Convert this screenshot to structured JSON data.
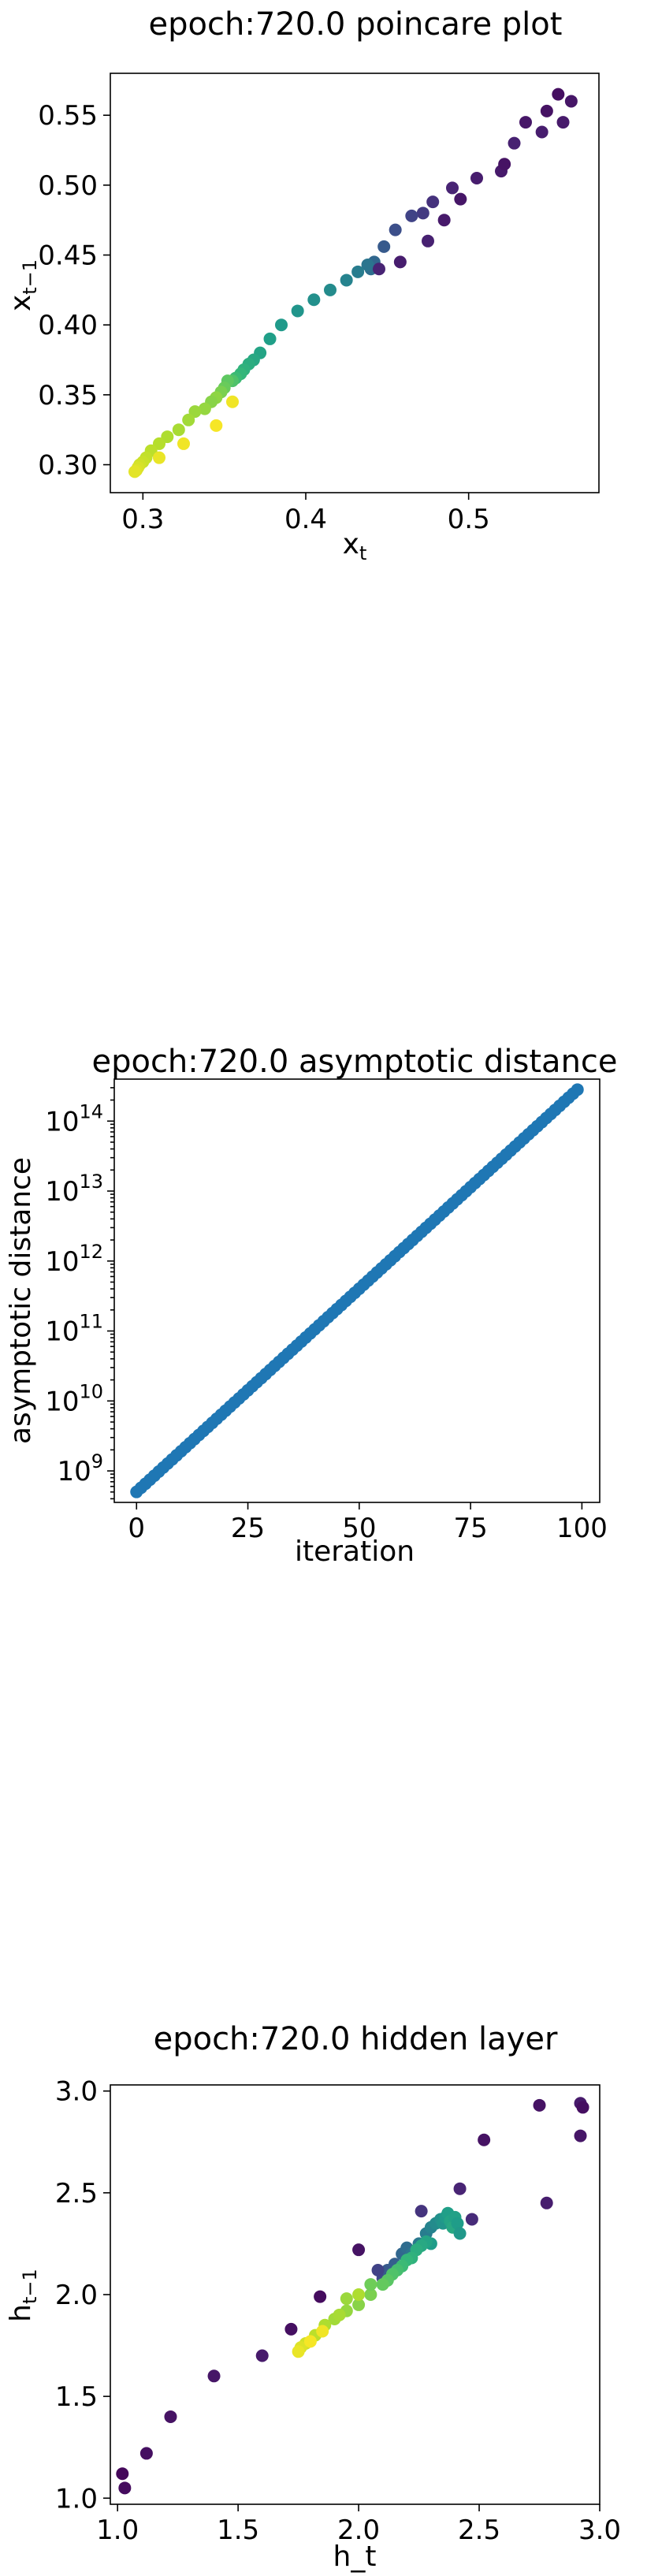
{
  "chart_data": [
    {
      "type": "scatter",
      "title": "epoch:720.0 poincare plot",
      "xlabel_base": "x",
      "xlabel_sub": "t",
      "ylabel_base": "x",
      "ylabel_sub": "t−1",
      "xlim": [
        0.28,
        0.58
      ],
      "ylim": [
        0.28,
        0.58
      ],
      "xticks": [
        0.3,
        0.4,
        0.5
      ],
      "xtick_labels": [
        "0.3",
        "0.4",
        "0.5"
      ],
      "yticks": [
        0.3,
        0.35,
        0.4,
        0.45,
        0.5,
        0.55
      ],
      "ytick_labels": [
        "0.30",
        "0.35",
        "0.40",
        "0.45",
        "0.50",
        "0.55"
      ],
      "colormap": "viridis",
      "points": [
        [
          0.555,
          0.565,
          0.04
        ],
        [
          0.563,
          0.56,
          0.06
        ],
        [
          0.548,
          0.553,
          0.05
        ],
        [
          0.558,
          0.545,
          0.07
        ],
        [
          0.545,
          0.538,
          0.08
        ],
        [
          0.535,
          0.545,
          0.06
        ],
        [
          0.528,
          0.53,
          0.09
        ],
        [
          0.52,
          0.51,
          0.07
        ],
        [
          0.505,
          0.505,
          0.08
        ],
        [
          0.49,
          0.498,
          0.1
        ],
        [
          0.478,
          0.488,
          0.14
        ],
        [
          0.472,
          0.48,
          0.17
        ],
        [
          0.465,
          0.478,
          0.2
        ],
        [
          0.455,
          0.468,
          0.24
        ],
        [
          0.448,
          0.456,
          0.28
        ],
        [
          0.442,
          0.445,
          0.33
        ],
        [
          0.44,
          0.44,
          0.36
        ],
        [
          0.438,
          0.443,
          0.39
        ],
        [
          0.432,
          0.438,
          0.42
        ],
        [
          0.425,
          0.432,
          0.45
        ],
        [
          0.415,
          0.425,
          0.48
        ],
        [
          0.405,
          0.418,
          0.5
        ],
        [
          0.395,
          0.41,
          0.52
        ],
        [
          0.385,
          0.4,
          0.54
        ],
        [
          0.378,
          0.39,
          0.56
        ],
        [
          0.372,
          0.38,
          0.58
        ],
        [
          0.368,
          0.375,
          0.6
        ],
        [
          0.365,
          0.372,
          0.62
        ],
        [
          0.362,
          0.368,
          0.64
        ],
        [
          0.36,
          0.365,
          0.66
        ],
        [
          0.357,
          0.362,
          0.68
        ],
        [
          0.355,
          0.36,
          0.72
        ],
        [
          0.352,
          0.36,
          0.75
        ],
        [
          0.35,
          0.355,
          0.77
        ],
        [
          0.348,
          0.352,
          0.8
        ],
        [
          0.345,
          0.348,
          0.83
        ],
        [
          0.342,
          0.345,
          0.82
        ],
        [
          0.338,
          0.34,
          0.84
        ],
        [
          0.332,
          0.338,
          0.85
        ],
        [
          0.328,
          0.332,
          0.86
        ],
        [
          0.322,
          0.325,
          0.87
        ],
        [
          0.315,
          0.32,
          0.88
        ],
        [
          0.31,
          0.315,
          0.89
        ],
        [
          0.305,
          0.31,
          0.9
        ],
        [
          0.302,
          0.305,
          0.91
        ],
        [
          0.3,
          0.302,
          0.92
        ],
        [
          0.298,
          0.3,
          0.93
        ],
        [
          0.297,
          0.298,
          0.94
        ],
        [
          0.296,
          0.296,
          0.95
        ],
        [
          0.295,
          0.295,
          0.96
        ],
        [
          0.31,
          0.305,
          0.97
        ],
        [
          0.325,
          0.315,
          0.98
        ],
        [
          0.345,
          0.328,
          0.99
        ],
        [
          0.355,
          0.345,
          0.98
        ],
        [
          0.445,
          0.44,
          0.1
        ],
        [
          0.458,
          0.445,
          0.08
        ],
        [
          0.475,
          0.46,
          0.09
        ],
        [
          0.485,
          0.475,
          0.07
        ],
        [
          0.495,
          0.49,
          0.06
        ],
        [
          0.522,
          0.515,
          0.05
        ]
      ]
    },
    {
      "type": "scatter",
      "title": "epoch:720.0 asymptotic distance",
      "xlabel": "iteration",
      "ylabel": "asymptotic distance",
      "yscale": "log",
      "xlim": [
        -5,
        104
      ],
      "ylim_log10": [
        8.55,
        14.6
      ],
      "xticks": [
        0,
        25,
        50,
        75,
        100
      ],
      "xtick_labels": [
        "0",
        "25",
        "50",
        "75",
        "100"
      ],
      "yticks_log10": [
        9,
        10,
        11,
        12,
        13,
        14
      ],
      "ytick_labels": [
        "10^9",
        "10^10",
        "10^11",
        "10^12",
        "10^13",
        "10^14"
      ],
      "color": "#1f77b4",
      "x_start": 0,
      "x_end": 99,
      "log10_y_start": 8.7,
      "log10_y_end": 14.45
    },
    {
      "type": "scatter",
      "title": "epoch:720.0 hidden layer",
      "xlabel": "h_t",
      "ylabel_base": "h",
      "ylabel_sub": "t−1",
      "xlim": [
        0.97,
        3.0
      ],
      "ylim": [
        0.97,
        3.03
      ],
      "xticks": [
        1.0,
        1.5,
        2.0,
        2.5,
        3.0
      ],
      "xtick_labels": [
        "1.0",
        "1.5",
        "2.0",
        "2.5",
        "3.0"
      ],
      "yticks": [
        1.0,
        1.5,
        2.0,
        2.5,
        3.0
      ],
      "ytick_labels": [
        "1.0",
        "1.5",
        "2.0",
        "2.5",
        "3.0"
      ],
      "colormap": "viridis",
      "points": [
        [
          2.75,
          2.93,
          0.05
        ],
        [
          2.92,
          2.94,
          0.07
        ],
        [
          2.93,
          2.92,
          0.04
        ],
        [
          2.92,
          2.78,
          0.06
        ],
        [
          2.52,
          2.76,
          0.05
        ],
        [
          2.78,
          2.45,
          0.08
        ],
        [
          1.02,
          1.12,
          0.02
        ],
        [
          1.03,
          1.05,
          0.03
        ],
        [
          1.12,
          1.22,
          0.04
        ],
        [
          1.22,
          1.4,
          0.05
        ],
        [
          1.4,
          1.6,
          0.06
        ],
        [
          1.6,
          1.7,
          0.07
        ],
        [
          1.72,
          1.83,
          0.04
        ],
        [
          1.84,
          1.99,
          0.03
        ],
        [
          2.0,
          2.22,
          0.05
        ],
        [
          2.1,
          2.08,
          0.22
        ],
        [
          2.12,
          2.12,
          0.28
        ],
        [
          2.15,
          2.15,
          0.3
        ],
        [
          2.18,
          2.2,
          0.33
        ],
        [
          2.2,
          2.23,
          0.35
        ],
        [
          2.22,
          2.2,
          0.38
        ],
        [
          2.25,
          2.25,
          0.4
        ],
        [
          2.28,
          2.3,
          0.42
        ],
        [
          2.3,
          2.33,
          0.45
        ],
        [
          2.32,
          2.35,
          0.48
        ],
        [
          2.34,
          2.37,
          0.5
        ],
        [
          2.35,
          2.35,
          0.52
        ],
        [
          2.36,
          2.38,
          0.54
        ],
        [
          2.37,
          2.4,
          0.56
        ],
        [
          2.38,
          2.36,
          0.58
        ],
        [
          2.39,
          2.33,
          0.6
        ],
        [
          2.4,
          2.38,
          0.57
        ],
        [
          2.41,
          2.35,
          0.55
        ],
        [
          2.42,
          2.3,
          0.53
        ],
        [
          2.3,
          2.25,
          0.55
        ],
        [
          2.28,
          2.26,
          0.58
        ],
        [
          2.26,
          2.24,
          0.6
        ],
        [
          2.24,
          2.22,
          0.62
        ],
        [
          2.22,
          2.18,
          0.64
        ],
        [
          2.2,
          2.17,
          0.66
        ],
        [
          2.18,
          2.14,
          0.68
        ],
        [
          2.16,
          2.12,
          0.7
        ],
        [
          2.14,
          2.1,
          0.72
        ],
        [
          2.12,
          2.07,
          0.74
        ],
        [
          2.1,
          2.05,
          0.76
        ],
        [
          2.05,
          2.0,
          0.8
        ],
        [
          2.0,
          1.95,
          0.82
        ],
        [
          1.95,
          1.92,
          0.84
        ],
        [
          1.9,
          1.88,
          0.86
        ],
        [
          1.86,
          1.85,
          0.88
        ],
        [
          1.82,
          1.8,
          0.9
        ],
        [
          1.78,
          1.76,
          0.93
        ],
        [
          1.76,
          1.74,
          0.95
        ],
        [
          1.75,
          1.72,
          0.97
        ],
        [
          1.8,
          1.77,
          0.99
        ],
        [
          1.85,
          1.82,
          0.98
        ],
        [
          1.95,
          1.98,
          0.85
        ],
        [
          2.0,
          2.0,
          0.88
        ],
        [
          2.08,
          2.12,
          0.2
        ],
        [
          2.42,
          2.52,
          0.1
        ],
        [
          2.47,
          2.37,
          0.12
        ],
        [
          2.26,
          2.41,
          0.15
        ],
        [
          2.05,
          2.05,
          0.78
        ],
        [
          1.92,
          1.9,
          0.87
        ]
      ]
    }
  ]
}
